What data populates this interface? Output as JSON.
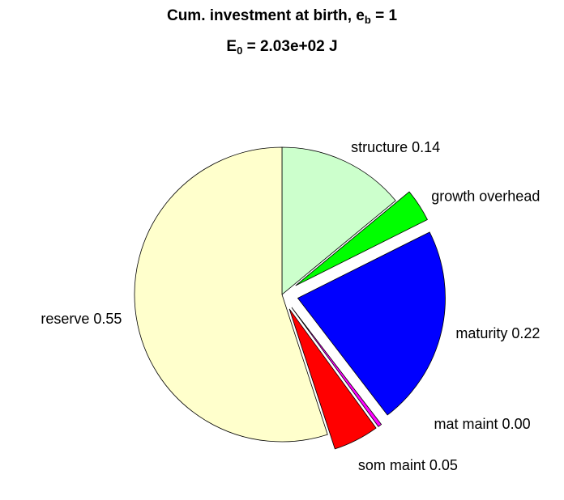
{
  "chart_data": {
    "type": "pie",
    "title": {
      "line1": "Cum. investment at birth, e",
      "line1_sub": "b",
      "line1_end": " = 1",
      "line2": "E",
      "line2_sub": "0",
      "line2_end": " = 2.03e+02 J"
    },
    "categories": [
      "structure 0.14",
      "growth overhead",
      "maturity 0.22",
      "mat maint 0.00",
      "som maint 0.05",
      "reserve 0.55"
    ],
    "values": [
      0.14,
      0.036,
      0.22,
      0.004,
      0.05,
      0.55
    ],
    "colors": [
      "#ccffcc",
      "#00ff00",
      "#0000ff",
      "#ff00ff",
      "#ff0000",
      "#ffffcc"
    ],
    "explode": [
      false,
      true,
      true,
      true,
      true,
      false
    ]
  }
}
